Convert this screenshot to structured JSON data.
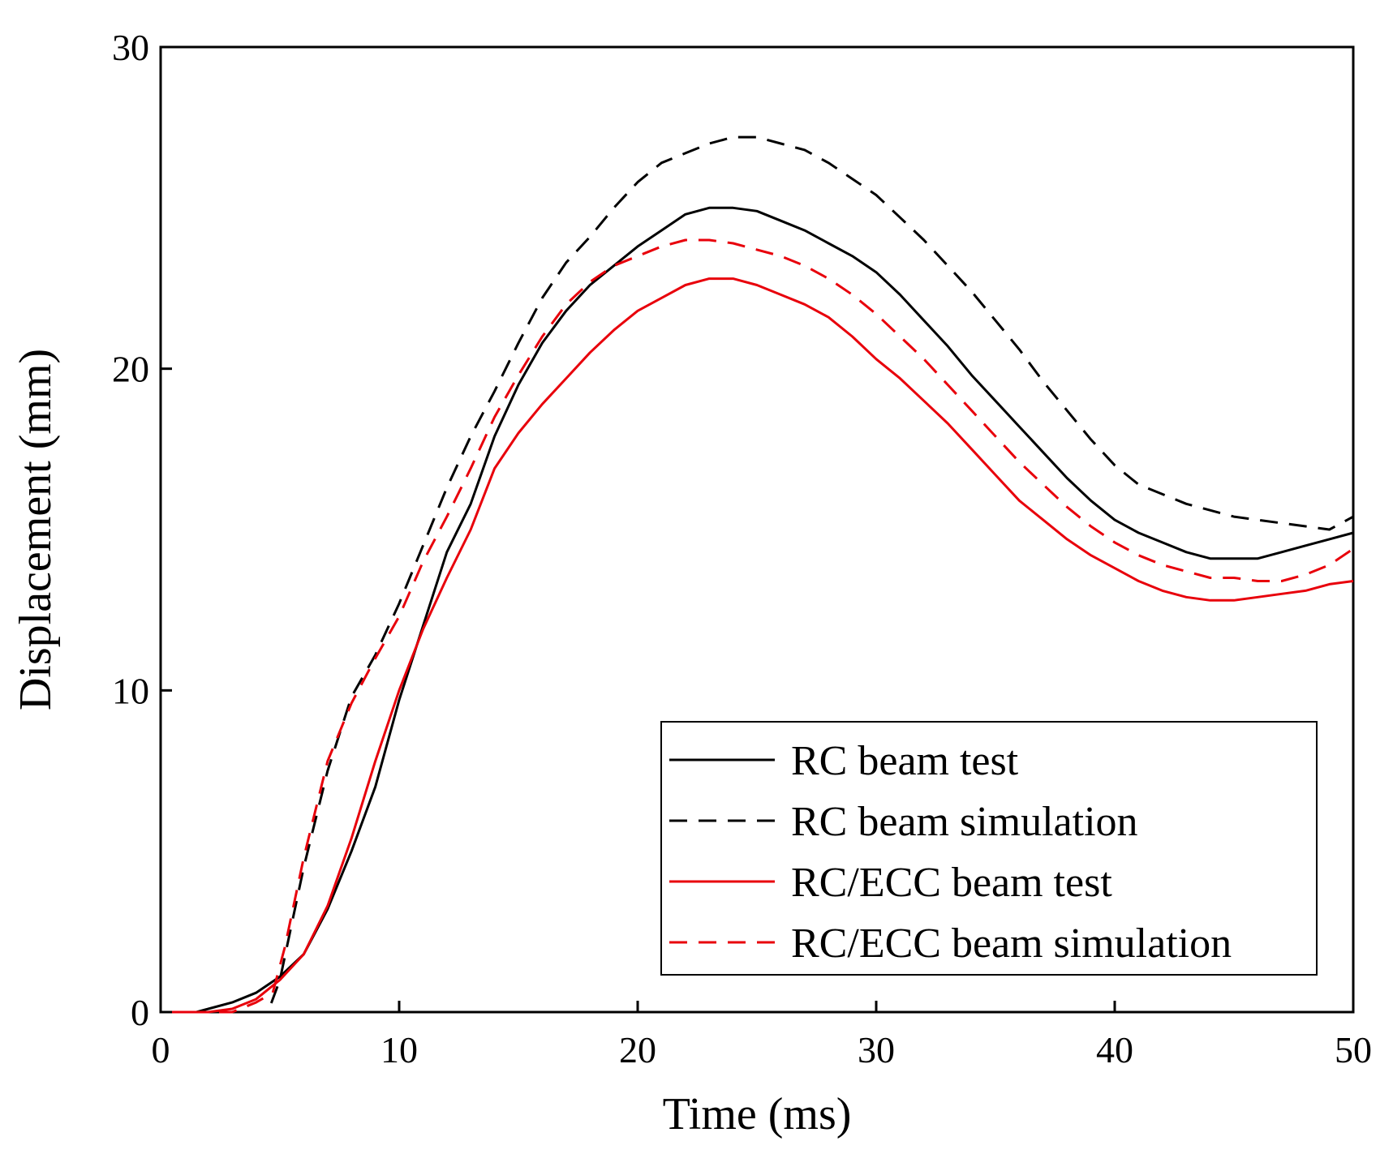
{
  "chart_data": {
    "type": "line",
    "title": "",
    "xlabel": "Time (ms)",
    "ylabel": "Displacement (mm)",
    "xlim": [
      0,
      50
    ],
    "ylim": [
      0,
      30
    ],
    "xticks": [
      0,
      10,
      20,
      30,
      40,
      50
    ],
    "yticks": [
      0,
      10,
      20,
      30
    ],
    "grid": false,
    "legend_position": "bottom-right",
    "series": [
      {
        "name": "RC beam test",
        "color": "#000000",
        "dashed": false,
        "x": [
          0,
          1.5,
          2,
          3,
          4,
          5,
          6,
          7,
          8,
          9,
          10,
          11,
          12,
          13,
          14,
          15,
          16,
          17,
          18,
          19,
          20,
          21,
          22,
          23,
          24,
          25,
          26,
          27,
          28,
          29,
          30,
          31,
          32,
          33,
          34,
          35,
          36,
          37,
          38,
          39,
          40,
          41,
          42,
          43,
          44,
          45,
          46,
          47,
          48,
          49,
          50
        ],
        "y": [
          0,
          0,
          0.1,
          0.3,
          0.6,
          1.1,
          1.8,
          3.2,
          5.0,
          7.0,
          9.7,
          12.0,
          14.3,
          15.8,
          17.9,
          19.5,
          20.8,
          21.8,
          22.6,
          23.2,
          23.8,
          24.3,
          24.8,
          25.0,
          25.0,
          24.9,
          24.6,
          24.3,
          23.9,
          23.5,
          23.0,
          22.3,
          21.5,
          20.7,
          19.8,
          19.0,
          18.2,
          17.4,
          16.6,
          15.9,
          15.3,
          14.9,
          14.6,
          14.3,
          14.1,
          14.1,
          14.1,
          14.3,
          14.5,
          14.7,
          14.9
        ]
      },
      {
        "name": "RC beam simulation",
        "color": "#000000",
        "dashed": true,
        "x": [
          0,
          4.5,
          5,
          6,
          7,
          8,
          9,
          10,
          11,
          12,
          13,
          14,
          15,
          16,
          17,
          18,
          19,
          20,
          21,
          22,
          23,
          24,
          25,
          26,
          27,
          28,
          29,
          30,
          31,
          32,
          33,
          34,
          35,
          36,
          37,
          38,
          39,
          40,
          41,
          42,
          43,
          44,
          45,
          46,
          47,
          48,
          49,
          50
        ],
        "y": [
          0,
          0,
          1.0,
          4.5,
          7.5,
          9.8,
          11.1,
          12.7,
          14.5,
          16.3,
          17.9,
          19.3,
          20.8,
          22.2,
          23.3,
          24.1,
          25.0,
          25.8,
          26.4,
          26.7,
          27.0,
          27.2,
          27.2,
          27.0,
          26.8,
          26.4,
          25.9,
          25.4,
          24.7,
          24.0,
          23.2,
          22.4,
          21.5,
          20.6,
          19.6,
          18.7,
          17.8,
          17.0,
          16.4,
          16.1,
          15.8,
          15.6,
          15.4,
          15.3,
          15.2,
          15.1,
          15.0,
          15.4
        ]
      },
      {
        "name": "RC/ECC beam test",
        "color": "#e8000b",
        "dashed": false,
        "x": [
          0,
          2,
          3,
          4,
          5,
          6,
          7,
          8,
          9,
          10,
          11,
          12,
          13,
          14,
          15,
          16,
          17,
          18,
          19,
          20,
          21,
          22,
          23,
          24,
          25,
          26,
          27,
          28,
          29,
          30,
          31,
          32,
          33,
          34,
          35,
          36,
          37,
          38,
          39,
          40,
          41,
          42,
          43,
          44,
          45,
          46,
          47,
          48,
          49,
          50
        ],
        "y": [
          0,
          0,
          0.1,
          0.4,
          1.0,
          1.8,
          3.3,
          5.4,
          7.8,
          10.0,
          11.9,
          13.5,
          15.0,
          16.9,
          18.0,
          18.9,
          19.7,
          20.5,
          21.2,
          21.8,
          22.2,
          22.6,
          22.8,
          22.8,
          22.6,
          22.3,
          22.0,
          21.6,
          21.0,
          20.3,
          19.7,
          19.0,
          18.3,
          17.5,
          16.7,
          15.9,
          15.3,
          14.7,
          14.2,
          13.8,
          13.4,
          13.1,
          12.9,
          12.8,
          12.8,
          12.9,
          13.0,
          13.1,
          13.3,
          13.4
        ]
      },
      {
        "name": "RC/ECC beam simulation",
        "color": "#e8000b",
        "dashed": true,
        "x": [
          0,
          3,
          4,
          4.7,
          5.2,
          6,
          7,
          8,
          9,
          10,
          11,
          12,
          13,
          14,
          15,
          16,
          17,
          18,
          19,
          20,
          21,
          22,
          23,
          24,
          25,
          26,
          27,
          28,
          29,
          30,
          31,
          32,
          33,
          34,
          35,
          36,
          37,
          38,
          39,
          40,
          41,
          42,
          43,
          44,
          45,
          46,
          47,
          48,
          49,
          50
        ],
        "y": [
          0,
          0,
          0.3,
          0.6,
          2.0,
          4.8,
          7.8,
          9.6,
          11.0,
          12.3,
          14.0,
          15.4,
          16.9,
          18.5,
          19.8,
          21.0,
          22.0,
          22.7,
          23.2,
          23.5,
          23.8,
          24.0,
          24.0,
          23.9,
          23.7,
          23.5,
          23.2,
          22.8,
          22.3,
          21.7,
          21.0,
          20.3,
          19.5,
          18.7,
          17.9,
          17.1,
          16.4,
          15.7,
          15.1,
          14.6,
          14.2,
          13.9,
          13.7,
          13.5,
          13.5,
          13.4,
          13.4,
          13.6,
          13.9,
          14.4
        ]
      }
    ]
  }
}
